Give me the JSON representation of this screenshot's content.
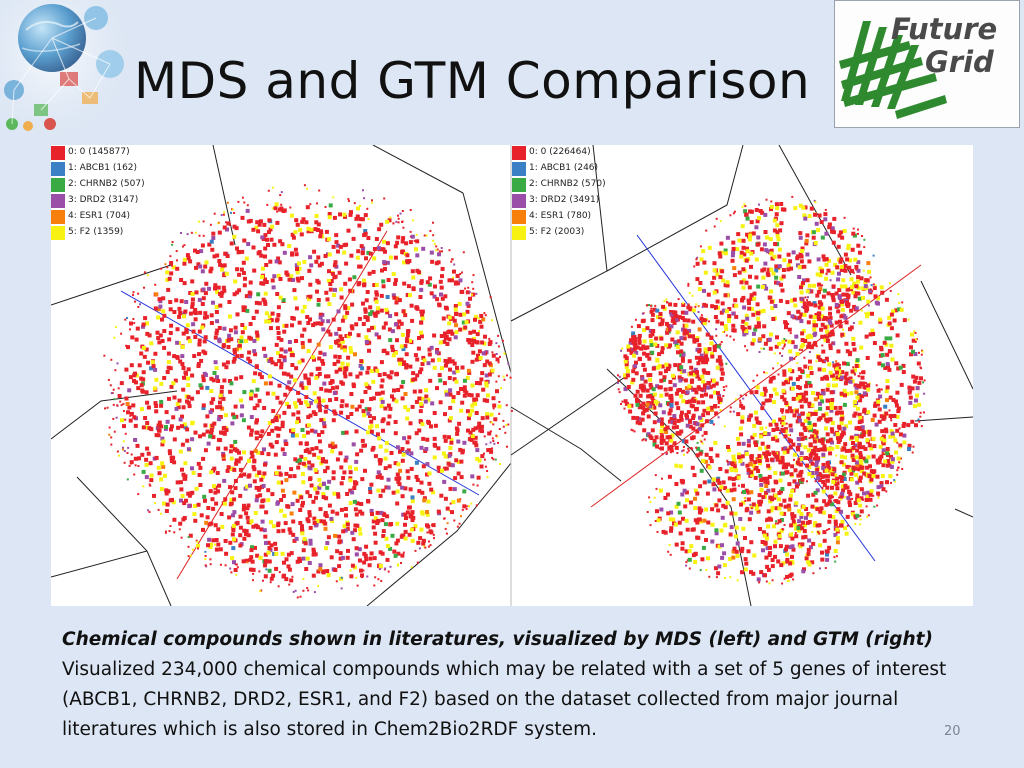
{
  "slide": {
    "title": "MDS and GTM Comparison",
    "logo_text": [
      "Future",
      "Grid"
    ],
    "page_number": "20"
  },
  "colors": {
    "background": "#dce6f4",
    "class_0": "#e8222a",
    "class_1": "#3b7fc4",
    "class_2": "#3aaa45",
    "class_3": "#9b4ea8",
    "class_4": "#f77f0c",
    "class_5": "#f7f212",
    "logo_grid": "#2f8a2f"
  },
  "visualization": {
    "left": {
      "method": "MDS",
      "legend": [
        {
          "label": "0: 0 (145877)",
          "color": "#e8222a"
        },
        {
          "label": "1: ABCB1 (162)",
          "color": "#3b7fc4"
        },
        {
          "label": "2: CHRNB2 (507)",
          "color": "#3aaa45"
        },
        {
          "label": "3: DRD2 (3147)",
          "color": "#9b4ea8"
        },
        {
          "label": "4: ESR1 (704)",
          "color": "#f77f0c"
        },
        {
          "label": "5: F2 (1359)",
          "color": "#f7f212"
        }
      ]
    },
    "right": {
      "method": "GTM",
      "legend": [
        {
          "label": "0: 0 (226464)",
          "color": "#e8222a"
        },
        {
          "label": "1: ABCB1 (246)",
          "color": "#3b7fc4"
        },
        {
          "label": "2: CHRNB2 (570)",
          "color": "#3aaa45"
        },
        {
          "label": "3: DRD2 (3491)",
          "color": "#9b4ea8"
        },
        {
          "label": "4: ESR1 (780)",
          "color": "#f77f0c"
        },
        {
          "label": "5: F2 (2003)",
          "color": "#f7f212"
        }
      ]
    }
  },
  "caption": {
    "title": "Chemical compounds shown in literatures, visualized by MDS (left) and GTM (right)",
    "body": "Visualized 234,000 chemical compounds which may be related with a set of 5 genes of interest (ABCB1, CHRNB2, DRD2, ESR1, and F2) based on the dataset collected from major journal literatures which is also stored in Chem2Bio2RDF system."
  }
}
